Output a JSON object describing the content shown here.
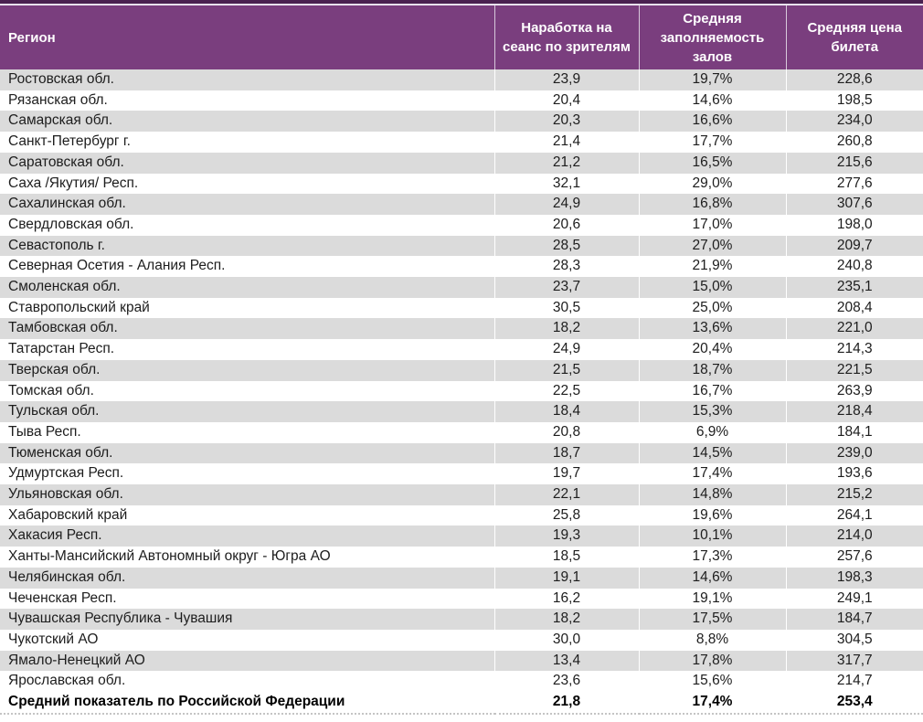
{
  "colors": {
    "header_bg": "#7A3E7E",
    "header_top_strip": "#4A2150",
    "header_highlight_line": "#E9E2EE",
    "stripe_bg": "#DBDBDB",
    "header_text": "#FFFFFF",
    "body_text": "#1D1D1D"
  },
  "table": {
    "columns": [
      {
        "key": "region",
        "label": "Регион"
      },
      {
        "key": "viewers",
        "label": "Наработка на сеанс по зрителям"
      },
      {
        "key": "occupancy",
        "label": "Средняя заполняемость залов"
      },
      {
        "key": "price",
        "label": "Средняя цена билета"
      }
    ],
    "rows": [
      {
        "region": "Ростовская обл.",
        "viewers": "23,9",
        "occupancy": "19,7%",
        "price": "228,6"
      },
      {
        "region": "Рязанская обл.",
        "viewers": "20,4",
        "occupancy": "14,6%",
        "price": "198,5"
      },
      {
        "region": "Самарская обл.",
        "viewers": "20,3",
        "occupancy": "16,6%",
        "price": "234,0"
      },
      {
        "region": "Санкт-Петербург г.",
        "viewers": "21,4",
        "occupancy": "17,7%",
        "price": "260,8"
      },
      {
        "region": "Саратовская обл.",
        "viewers": "21,2",
        "occupancy": "16,5%",
        "price": "215,6"
      },
      {
        "region": "Саха /Якутия/ Респ.",
        "viewers": "32,1",
        "occupancy": "29,0%",
        "price": "277,6"
      },
      {
        "region": "Сахалинская обл.",
        "viewers": "24,9",
        "occupancy": "16,8%",
        "price": "307,6"
      },
      {
        "region": "Свердловская обл.",
        "viewers": "20,6",
        "occupancy": "17,0%",
        "price": "198,0"
      },
      {
        "region": "Севастополь г.",
        "viewers": "28,5",
        "occupancy": "27,0%",
        "price": "209,7"
      },
      {
        "region": "Северная Осетия - Алания Респ.",
        "viewers": "28,3",
        "occupancy": "21,9%",
        "price": "240,8"
      },
      {
        "region": "Смоленская обл.",
        "viewers": "23,7",
        "occupancy": "15,0%",
        "price": "235,1"
      },
      {
        "region": "Ставропольский край",
        "viewers": "30,5",
        "occupancy": "25,0%",
        "price": "208,4"
      },
      {
        "region": "Тамбовская обл.",
        "viewers": "18,2",
        "occupancy": "13,6%",
        "price": "221,0"
      },
      {
        "region": "Татарстан Респ.",
        "viewers": "24,9",
        "occupancy": "20,4%",
        "price": "214,3"
      },
      {
        "region": "Тверская обл.",
        "viewers": "21,5",
        "occupancy": "18,7%",
        "price": "221,5"
      },
      {
        "region": "Томская обл.",
        "viewers": "22,5",
        "occupancy": "16,7%",
        "price": "263,9"
      },
      {
        "region": "Тульская обл.",
        "viewers": "18,4",
        "occupancy": "15,3%",
        "price": "218,4"
      },
      {
        "region": "Тыва Респ.",
        "viewers": "20,8",
        "occupancy": "6,9%",
        "price": "184,1"
      },
      {
        "region": "Тюменская обл.",
        "viewers": "18,7",
        "occupancy": "14,5%",
        "price": "239,0"
      },
      {
        "region": "Удмуртская Респ.",
        "viewers": "19,7",
        "occupancy": "17,4%",
        "price": "193,6"
      },
      {
        "region": "Ульяновская обл.",
        "viewers": "22,1",
        "occupancy": "14,8%",
        "price": "215,2"
      },
      {
        "region": "Хабаровский край",
        "viewers": "25,8",
        "occupancy": "19,6%",
        "price": "264,1"
      },
      {
        "region": "Хакасия Респ.",
        "viewers": "19,3",
        "occupancy": "10,1%",
        "price": "214,0"
      },
      {
        "region": "Ханты-Мансийский Автономный округ - Югра АО",
        "viewers": "18,5",
        "occupancy": "17,3%",
        "price": "257,6"
      },
      {
        "region": "Челябинская обл.",
        "viewers": "19,1",
        "occupancy": "14,6%",
        "price": "198,3"
      },
      {
        "region": "Чеченская Респ.",
        "viewers": "16,2",
        "occupancy": "19,1%",
        "price": "249,1"
      },
      {
        "region": "Чувашская Республика - Чувашия",
        "viewers": "18,2",
        "occupancy": "17,5%",
        "price": "184,7"
      },
      {
        "region": "Чукотский АО",
        "viewers": "30,0",
        "occupancy": "8,8%",
        "price": "304,5"
      },
      {
        "region": "Ямало-Ненецкий АО",
        "viewers": "13,4",
        "occupancy": "17,8%",
        "price": "317,7"
      },
      {
        "region": "Ярославская обл.",
        "viewers": "23,6",
        "occupancy": "15,6%",
        "price": "214,7"
      },
      {
        "region": "Средний показатель по Российской Федерации",
        "viewers": "21,8",
        "occupancy": "17,4%",
        "price": "253,4",
        "summary": true
      }
    ]
  }
}
